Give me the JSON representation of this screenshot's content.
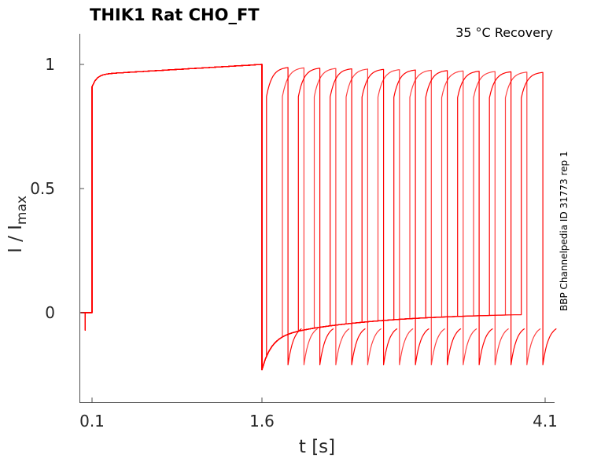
{
  "chart_data": {
    "type": "line",
    "title": "THIK1  Rat  CHO_FT",
    "annotation": "35 °C  Recovery",
    "side_label": "BBP Channelpedia ID 31773 rep 1",
    "xlabel": "t [s]",
    "ylabel_main": "I / I",
    "ylabel_sub": "max",
    "xlim": [
      0.0,
      4.17
    ],
    "ylim": [
      -0.36,
      1.12
    ],
    "xticks": [
      {
        "value": 0.1,
        "label": "0.1"
      },
      {
        "value": 1.6,
        "label": "1.6"
      },
      {
        "value": 4.1,
        "label": "4.1"
      }
    ],
    "yticks": [
      {
        "value": 0,
        "label": "0"
      },
      {
        "value": 0.5,
        "label": "0.5"
      },
      {
        "value": 1,
        "label": "1"
      }
    ],
    "grid": false,
    "color": "#ff0000",
    "protocol": {
      "baseline_start": 0.0,
      "prepulse_dip_time": 0.04,
      "prepulse_dip_value": -0.07,
      "conditioning_start": 0.1,
      "conditioning_end": 1.6,
      "conditioning_initial": 0.91,
      "conditioning_peak": 1.0,
      "recovery_min": -0.23,
      "recovery_final": 0.0,
      "n_sweeps": 17,
      "first_test_start": 1.64,
      "test_interval": 0.1406,
      "test_duration": 0.19,
      "test_initial": 0.82,
      "test_peak_first": 0.99,
      "test_peak_last": 0.97,
      "tail_min": -0.21,
      "tail_end": -0.05,
      "tail_duration": 0.12
    }
  }
}
